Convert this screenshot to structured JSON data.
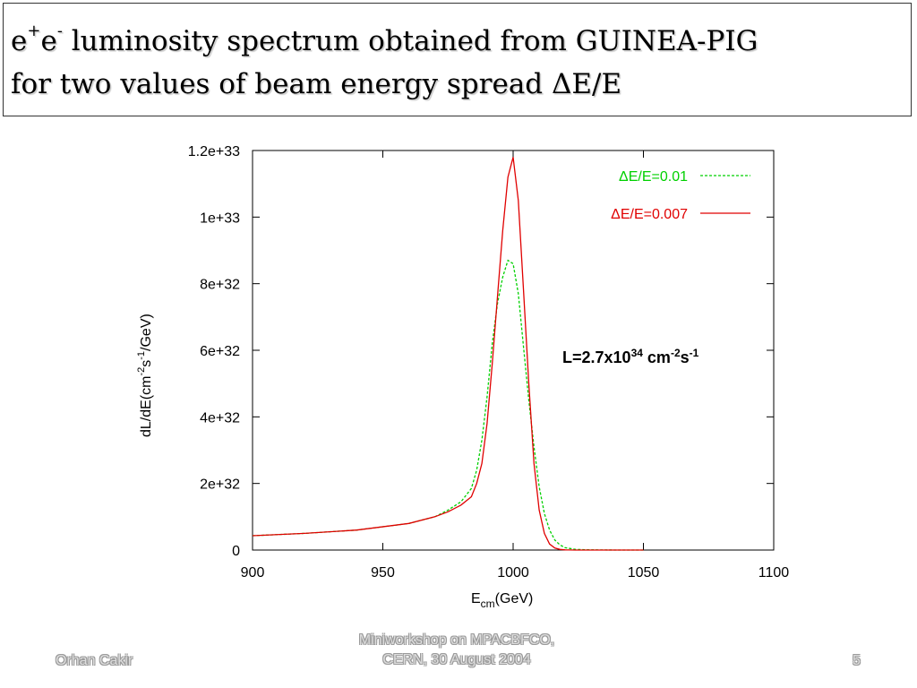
{
  "slide": {
    "title_line1_pre": "e",
    "title_line1_sup1": "+",
    "title_line1_mid": "e",
    "title_line1_sup2": "-",
    "title_line1_post": " luminosity spectrum obtained from GUINEA-PIG",
    "title_line2": "for two values of beam energy spread  ΔE/E",
    "footer_left": "Orhan Cakir",
    "footer_center_line1": "Miniworkshop on MPACBFCO,",
    "footer_center_line2": "CERN, 30 August 2004",
    "page_number": "5"
  },
  "colors": {
    "series_green": "#00d000",
    "series_red": "#e00000"
  },
  "chart_data": {
    "type": "line",
    "xlabel_base": "E",
    "xlabel_sub": "cm",
    "xlabel_suffix": "(GeV)",
    "ylabel": "dL/dE(cm-2s-1/GeV)",
    "ylabel_parts": [
      "dL/dE(cm",
      "-2",
      "s",
      "-1",
      "/GeV)"
    ],
    "xlim": [
      900,
      1100
    ],
    "ylim": [
      0,
      1.2e+33
    ],
    "xticks": [
      900,
      950,
      1000,
      1050,
      1100
    ],
    "xtick_labels": [
      "900",
      "950",
      "1000",
      "1050",
      "1100"
    ],
    "yticks": [
      0,
      2e+32,
      4e+32,
      6e+32,
      8e+32,
      1e+33,
      1.2e+33
    ],
    "ytick_labels": [
      "0",
      "2e+32",
      "4e+32",
      "6e+32",
      "8e+32",
      "1e+33",
      "1.2e+33"
    ],
    "legend_position": "top-right",
    "annotation": {
      "text_base": "L=2.7x10",
      "text_exp1": "34",
      "text_mid": " cm",
      "text_exp2": "-2",
      "text_s": "s",
      "text_exp3": "-1"
    },
    "series": [
      {
        "name": "ΔE/E=0.01",
        "style": "dashed",
        "color": "#00d000",
        "x": [
          900,
          920,
          940,
          960,
          970,
          975,
          980,
          984,
          986,
          988,
          990,
          992,
          994,
          996,
          998,
          1000,
          1002,
          1004,
          1006,
          1008,
          1010,
          1012,
          1014,
          1016,
          1018,
          1020,
          1024,
          1030,
          1040,
          1050
        ],
        "y": [
          4.3e+31,
          5e+31,
          6e+31,
          8e+31,
          1e+32,
          1.2e+32,
          1.45e+32,
          1.85e+32,
          2.4e+32,
          3.3e+32,
          4.6e+32,
          6.2e+32,
          7.4e+32,
          8.2e+32,
          8.7e+32,
          8.6e+32,
          7.7e+32,
          6.1e+32,
          4.5e+32,
          3.1e+32,
          1.9e+32,
          1.1e+32,
          6e+31,
          3e+31,
          1.5e+31,
          7e+30,
          2e+30,
          5e+29,
          0,
          0
        ]
      },
      {
        "name": "ΔE/E=0.007",
        "style": "solid",
        "color": "#e00000",
        "x": [
          900,
          920,
          940,
          960,
          970,
          975,
          980,
          984,
          986,
          988,
          990,
          992,
          994,
          996,
          998,
          1000,
          1002,
          1004,
          1006,
          1008,
          1010,
          1012,
          1014,
          1016,
          1018,
          1020,
          1024,
          1030,
          1040,
          1050
        ],
        "y": [
          4.3e+31,
          5e+31,
          6e+31,
          8e+31,
          1e+32,
          1.15e+32,
          1.35e+32,
          1.6e+32,
          2e+32,
          2.6e+32,
          3.8e+32,
          5.6e+32,
          7.6e+32,
          9.6e+32,
          1.12e+33,
          1.18e+33,
          1.05e+33,
          7.8e+32,
          5e+32,
          2.6e+32,
          1.2e+32,
          5e+31,
          1.8e+31,
          6e+30,
          2e+30,
          5e+29,
          0,
          0,
          0,
          0
        ]
      }
    ]
  }
}
